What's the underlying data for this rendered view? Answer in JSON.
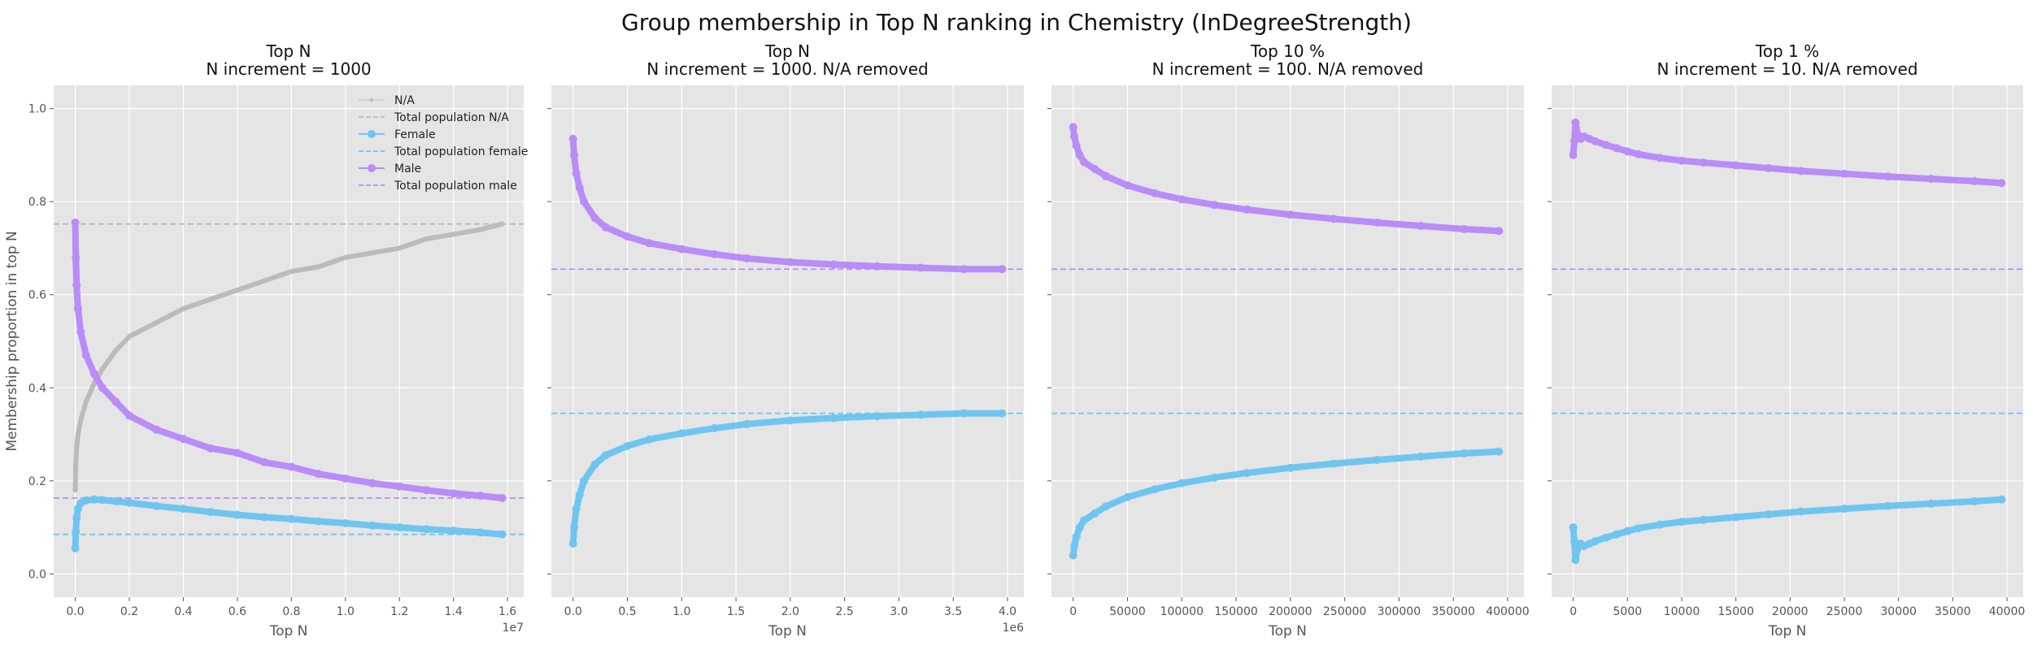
{
  "figure": {
    "title": "Group membership in Top N ranking in Chemistry (InDegreeStrength)"
  },
  "colors": {
    "na": "#bbbbbb",
    "female": "#6ec6f0",
    "male": "#b98cf7",
    "panel_bg": "#e5e5e5",
    "grid": "#ffffff"
  },
  "chart_data": [
    {
      "type": "line",
      "title": "Top N\nN increment = 1000",
      "xlabel": "Top N",
      "ylabel": "Membership proportion in top N",
      "xlim": [
        -800000,
        16600000
      ],
      "ylim": [
        -0.05,
        1.05
      ],
      "xticks": [
        0,
        2000000,
        4000000,
        6000000,
        8000000,
        10000000,
        12000000,
        14000000,
        16000000
      ],
      "xtick_labels": [
        "0.0",
        "0.2",
        "0.4",
        "0.6",
        "0.8",
        "1.0",
        "1.2",
        "1.4",
        "1.6"
      ],
      "x_offset_label": "1e7",
      "yticks": [
        0.0,
        0.2,
        0.4,
        0.6,
        0.8,
        1.0
      ],
      "ytick_labels": [
        "0.0",
        "0.2",
        "0.4",
        "0.6",
        "0.8",
        "1.0"
      ],
      "legend_position": "top-right",
      "legend": [
        {
          "label": "N/A",
          "key": "na",
          "style": "line-marker",
          "small": true
        },
        {
          "label": "Total population N/A",
          "key": "na",
          "style": "dashed"
        },
        {
          "label": "Female",
          "key": "female",
          "style": "line-marker"
        },
        {
          "label": "Total population female",
          "key": "female",
          "style": "dashed"
        },
        {
          "label": "Male",
          "key": "male",
          "style": "line-marker"
        },
        {
          "label": "Total population male",
          "key": "male",
          "style": "dashed"
        }
      ],
      "hlines": [
        {
          "name": "Total population N/A",
          "key": "na",
          "y": 0.752
        },
        {
          "name": "Total population female",
          "key": "female",
          "y": 0.085
        },
        {
          "name": "Total population male",
          "key": "male",
          "y": 0.163
        }
      ],
      "series": [
        {
          "name": "N/A",
          "key": "na",
          "small": true,
          "x": [
            0,
            20000,
            50000,
            100000,
            200000,
            400000,
            700000,
            1000000,
            1500000,
            2000000,
            3000000,
            4000000,
            5000000,
            6000000,
            7000000,
            8000000,
            9000000,
            10000000,
            11000000,
            12000000,
            13000000,
            14000000,
            15000000,
            15800000
          ],
          "y": [
            0.18,
            0.24,
            0.27,
            0.3,
            0.33,
            0.37,
            0.41,
            0.44,
            0.48,
            0.51,
            0.54,
            0.57,
            0.59,
            0.61,
            0.63,
            0.65,
            0.66,
            0.68,
            0.69,
            0.7,
            0.72,
            0.73,
            0.74,
            0.752
          ]
        },
        {
          "name": "Female",
          "key": "female",
          "x": [
            0,
            20000,
            50000,
            100000,
            200000,
            400000,
            700000,
            1000000,
            1500000,
            2000000,
            3000000,
            4000000,
            5000000,
            6000000,
            7000000,
            8000000,
            9000000,
            10000000,
            11000000,
            12000000,
            13000000,
            14000000,
            15000000,
            15800000
          ],
          "y": [
            0.055,
            0.09,
            0.12,
            0.14,
            0.152,
            0.158,
            0.16,
            0.159,
            0.156,
            0.153,
            0.146,
            0.14,
            0.133,
            0.127,
            0.122,
            0.118,
            0.113,
            0.109,
            0.104,
            0.1,
            0.096,
            0.093,
            0.089,
            0.085
          ]
        },
        {
          "name": "Male",
          "key": "male",
          "x": [
            0,
            20000,
            50000,
            100000,
            200000,
            400000,
            700000,
            1000000,
            1500000,
            2000000,
            3000000,
            4000000,
            5000000,
            6000000,
            7000000,
            8000000,
            9000000,
            10000000,
            11000000,
            12000000,
            13000000,
            14000000,
            15000000,
            15800000
          ],
          "y": [
            0.755,
            0.68,
            0.62,
            0.57,
            0.52,
            0.47,
            0.43,
            0.4,
            0.37,
            0.34,
            0.31,
            0.29,
            0.27,
            0.26,
            0.24,
            0.23,
            0.215,
            0.205,
            0.195,
            0.188,
            0.18,
            0.173,
            0.168,
            0.163
          ]
        }
      ]
    },
    {
      "type": "line",
      "title": "Top N\nN increment = 1000. N/A removed",
      "xlabel": "Top N",
      "ylabel": "",
      "xlim": [
        -200000,
        4150000
      ],
      "ylim": [
        -0.05,
        1.05
      ],
      "xticks": [
        0,
        500000,
        1000000,
        1500000,
        2000000,
        2500000,
        3000000,
        3500000,
        4000000
      ],
      "xtick_labels": [
        "0.0",
        "0.5",
        "1.0",
        "1.5",
        "2.0",
        "2.5",
        "3.0",
        "3.5",
        "4.0"
      ],
      "x_offset_label": "1e6",
      "yticks": [
        0.0,
        0.2,
        0.4,
        0.6,
        0.8,
        1.0
      ],
      "ytick_labels": [],
      "hlines": [
        {
          "name": "Total population female",
          "key": "female",
          "y": 0.345
        },
        {
          "name": "Total population male",
          "key": "male",
          "y": 0.655
        }
      ],
      "series": [
        {
          "name": "Female",
          "key": "female",
          "x": [
            0,
            10000,
            30000,
            60000,
            100000,
            200000,
            300000,
            500000,
            700000,
            1000000,
            1300000,
            1600000,
            2000000,
            2400000,
            2800000,
            3200000,
            3600000,
            3950000
          ],
          "y": [
            0.065,
            0.1,
            0.14,
            0.17,
            0.2,
            0.235,
            0.255,
            0.275,
            0.289,
            0.302,
            0.313,
            0.322,
            0.33,
            0.335,
            0.339,
            0.342,
            0.345,
            0.345
          ]
        },
        {
          "name": "Male",
          "key": "male",
          "x": [
            0,
            10000,
            30000,
            60000,
            100000,
            200000,
            300000,
            500000,
            700000,
            1000000,
            1300000,
            1600000,
            2000000,
            2400000,
            2800000,
            3200000,
            3600000,
            3950000
          ],
          "y": [
            0.935,
            0.9,
            0.86,
            0.83,
            0.8,
            0.765,
            0.745,
            0.725,
            0.711,
            0.698,
            0.687,
            0.678,
            0.67,
            0.665,
            0.661,
            0.658,
            0.655,
            0.655
          ]
        }
      ]
    },
    {
      "type": "line",
      "title": "Top 10 %\nN increment = 100. N/A removed",
      "xlabel": "Top N",
      "ylabel": "",
      "xlim": [
        -20000,
        415000
      ],
      "ylim": [
        -0.05,
        1.05
      ],
      "xticks": [
        0,
        50000,
        100000,
        150000,
        200000,
        250000,
        300000,
        350000,
        400000
      ],
      "xtick_labels": [
        "0",
        "50000",
        "100000",
        "150000",
        "200000",
        "250000",
        "300000",
        "350000",
        "400000"
      ],
      "yticks": [
        0.0,
        0.2,
        0.4,
        0.6,
        0.8,
        1.0
      ],
      "ytick_labels": [],
      "hlines": [
        {
          "name": "Total population female",
          "key": "female",
          "y": 0.345
        },
        {
          "name": "Total population male",
          "key": "male",
          "y": 0.655
        }
      ],
      "series": [
        {
          "name": "Female",
          "key": "female",
          "x": [
            0,
            1000,
            3000,
            6000,
            10000,
            20000,
            30000,
            50000,
            75000,
            100000,
            130000,
            160000,
            200000,
            240000,
            280000,
            320000,
            360000,
            392000
          ],
          "y": [
            0.04,
            0.06,
            0.08,
            0.1,
            0.115,
            0.13,
            0.145,
            0.165,
            0.182,
            0.195,
            0.207,
            0.217,
            0.228,
            0.237,
            0.245,
            0.252,
            0.259,
            0.263
          ]
        },
        {
          "name": "Male",
          "key": "male",
          "x": [
            0,
            1000,
            3000,
            6000,
            10000,
            20000,
            30000,
            50000,
            75000,
            100000,
            130000,
            160000,
            200000,
            240000,
            280000,
            320000,
            360000,
            392000
          ],
          "y": [
            0.96,
            0.94,
            0.92,
            0.9,
            0.885,
            0.87,
            0.855,
            0.835,
            0.818,
            0.805,
            0.793,
            0.783,
            0.772,
            0.763,
            0.755,
            0.748,
            0.741,
            0.737
          ]
        }
      ]
    },
    {
      "type": "line",
      "title": "Top 1 %\nN increment = 10. N/A removed",
      "xlabel": "Top N",
      "ylabel": "",
      "xlim": [
        -2000,
        41500
      ],
      "ylim": [
        -0.05,
        1.05
      ],
      "xticks": [
        0,
        5000,
        10000,
        15000,
        20000,
        25000,
        30000,
        35000,
        40000
      ],
      "xtick_labels": [
        "0",
        "5000",
        "10000",
        "15000",
        "20000",
        "25000",
        "30000",
        "35000",
        "40000"
      ],
      "yticks": [
        0.0,
        0.2,
        0.4,
        0.6,
        0.8,
        1.0
      ],
      "ytick_labels": [],
      "hlines": [
        {
          "name": "Total population female",
          "key": "female",
          "y": 0.345
        },
        {
          "name": "Total population male",
          "key": "male",
          "y": 0.655
        }
      ],
      "series": [
        {
          "name": "Female",
          "key": "female",
          "x": [
            0,
            100,
            200,
            400,
            700,
            1000,
            1500,
            2000,
            3000,
            4000,
            5000,
            6000,
            8000,
            10000,
            12000,
            15000,
            18000,
            21000,
            25000,
            29000,
            33000,
            37000,
            39500
          ],
          "y": [
            0.1,
            0.07,
            0.03,
            0.055,
            0.065,
            0.06,
            0.065,
            0.07,
            0.078,
            0.085,
            0.092,
            0.098,
            0.106,
            0.112,
            0.116,
            0.122,
            0.128,
            0.134,
            0.14,
            0.146,
            0.151,
            0.156,
            0.16
          ]
        },
        {
          "name": "Male",
          "key": "male",
          "x": [
            0,
            100,
            200,
            400,
            700,
            1000,
            1500,
            2000,
            3000,
            4000,
            5000,
            6000,
            8000,
            10000,
            12000,
            15000,
            18000,
            21000,
            25000,
            29000,
            33000,
            37000,
            39500
          ],
          "y": [
            0.9,
            0.93,
            0.97,
            0.945,
            0.935,
            0.94,
            0.935,
            0.93,
            0.922,
            0.915,
            0.908,
            0.902,
            0.894,
            0.888,
            0.884,
            0.878,
            0.872,
            0.866,
            0.86,
            0.854,
            0.849,
            0.844,
            0.84
          ]
        }
      ]
    }
  ]
}
